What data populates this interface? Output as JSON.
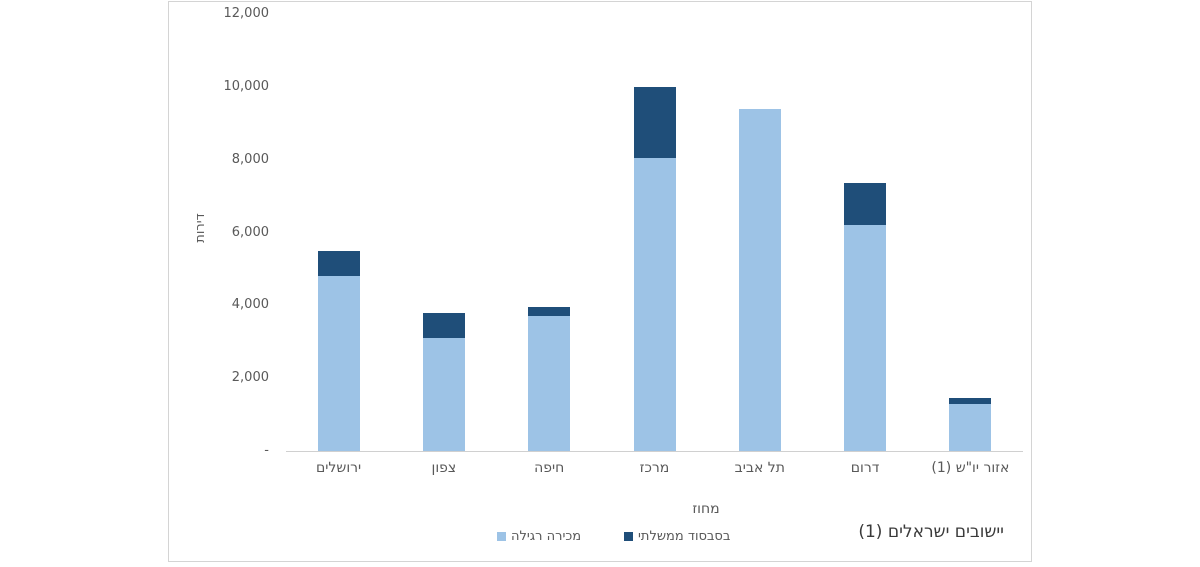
{
  "chart_data": {
    "type": "bar",
    "stacked": true,
    "title": "",
    "categories": [
      "ירושלים",
      "צפון",
      "חיפה",
      "מרכז",
      "תל אביב",
      "דרום",
      "אזור יו\"ש (1)"
    ],
    "series": [
      {
        "name": "מכירה רגילה",
        "color": "#9DC3E6",
        "values": [
          4800,
          3100,
          3700,
          8050,
          9400,
          6200,
          1300
        ]
      },
      {
        "name": "בסבסוד ממשלתי",
        "color": "#1F4E79",
        "values": [
          700,
          700,
          250,
          1950,
          0,
          1150,
          150
        ]
      }
    ],
    "xlabel": "מחוז",
    "ylabel": "דירות",
    "ylim": [
      0,
      12000
    ],
    "ytick_step": 2000,
    "ytick_labels": [
      "-",
      "2,000",
      "4,000",
      "6,000",
      "8,000",
      "10,000",
      "12,000"
    ],
    "grid": false,
    "legend_position": "bottom-center"
  },
  "footnote": {
    "text": "(1) יישובים ישראלים"
  },
  "colors": {
    "regular_sale": "#9DC3E6",
    "gov_subsidized": "#1F4E79",
    "axis_text": "#595959",
    "axis_line": "#d0d0d0",
    "chart_border": "#d4d4d4",
    "background": "#ffffff"
  }
}
